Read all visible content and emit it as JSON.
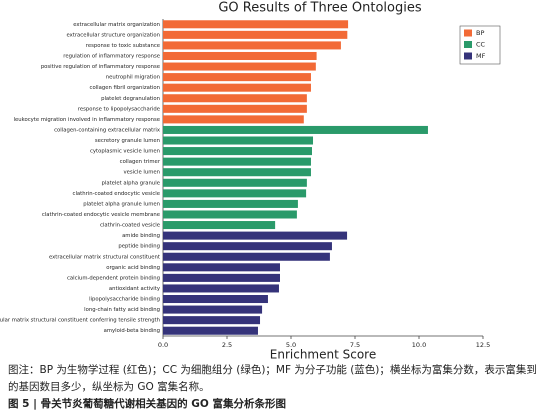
{
  "chart_data": {
    "type": "bar",
    "orientation": "horizontal",
    "title": "GO Results of Three Ontologies",
    "x_label": "Enrichment Score",
    "categories": [
      "extracellular matrix organization",
      "extracellular structure organization",
      "response to toxic substance",
      "regulation of inflammatory response",
      "positive regulation of inflammatory response",
      "neutrophil migration",
      "collagen fibril organization",
      "platelet degranulation",
      "response to lipopolysaccharide",
      "leukocyte migration involved in inflammatory response",
      "collagen-containing extracellular matrix",
      "secretory granule lumen",
      "cytoplasmic vesicle lumen",
      "collagen trimer",
      "vesicle lumen",
      "platelet alpha granule",
      "clathrin-coated endocytic vesicle",
      "platelet alpha granule lumen",
      "clathrin-coated endocytic vesicle membrane",
      "clathrin-coated vesicle",
      "amide binding",
      "peptide binding",
      "extracellular matrix structural constituent",
      "organic acid binding",
      "calcium-dependent protein binding",
      "antioxidant activity",
      "lipopolysaccharide binding",
      "long-chain fatty acid binding",
      "extracellular matrix structural constituent conferring tensile strength",
      "amyloid-beta binding"
    ],
    "series": [
      {
        "name": "BP",
        "color": "#f26a36",
        "values": [
          7.23,
          7.2,
          6.95,
          6.0,
          5.97,
          5.78,
          5.78,
          5.62,
          5.62,
          5.5,
          null,
          null,
          null,
          null,
          null,
          null,
          null,
          null,
          null,
          null,
          null,
          null,
          null,
          null,
          null,
          null,
          null,
          null,
          null,
          null
        ]
      },
      {
        "name": "CC",
        "color": "#2a9a6a",
        "values": [
          null,
          null,
          null,
          null,
          null,
          null,
          null,
          null,
          null,
          null,
          10.35,
          5.86,
          5.82,
          5.78,
          5.78,
          5.62,
          5.59,
          5.27,
          5.23,
          4.38,
          null,
          null,
          null,
          null,
          null,
          null,
          null,
          null,
          null,
          null
        ]
      },
      {
        "name": "MF",
        "color": "#35337a",
        "values": [
          null,
          null,
          null,
          null,
          null,
          null,
          null,
          null,
          null,
          null,
          null,
          null,
          null,
          null,
          null,
          null,
          null,
          null,
          null,
          null,
          7.19,
          6.6,
          6.52,
          4.57,
          4.57,
          4.53,
          4.1,
          3.87,
          3.79,
          3.71
        ]
      }
    ],
    "xlim": [
      0,
      12.5
    ],
    "xticks": [
      {
        "value": 0,
        "label": "0.0"
      },
      {
        "value": 2.5,
        "label": "2.5"
      },
      {
        "value": 5,
        "label": "5.0"
      },
      {
        "value": 7.5,
        "label": "7.5"
      },
      {
        "value": 10,
        "label": "10.0"
      },
      {
        "value": 12.5,
        "label": "12.5"
      }
    ],
    "legend": "upper right"
  },
  "caption": {
    "note": "图注：BP 为生物学过程 (红色)；CC 为细胞组分 (绿色)；MF 为分子功能 (蓝色)；横坐标为富集分数，表示富集到的基因数目多少，纵坐标为 GO 富集名称。",
    "figure": "图 5 | 骨关节炎葡萄糖代谢相关基因的 GO 富集分析条形图"
  }
}
